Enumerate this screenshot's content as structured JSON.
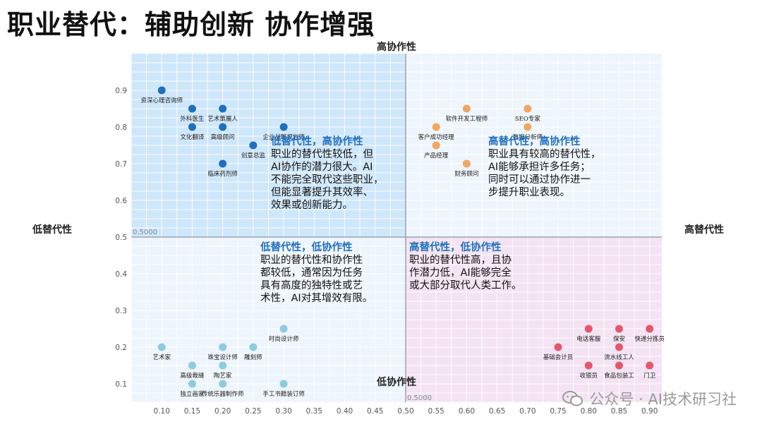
{
  "title": "职业替代：辅助创新 协作增强",
  "axis_labels": {
    "top": "高协作性",
    "bottom": "低协作性",
    "left": "低替代性",
    "right": "高替代性"
  },
  "quadrants": [
    {
      "id": "tl",
      "heading": "低替代性，高协作性",
      "lines": [
        "职业的替代性较低，但",
        "AI协作的潜力很大。AI",
        "不能完全取代这些职业，",
        "但能显著提升其效率、",
        "效果或创新能力。"
      ]
    },
    {
      "id": "tr",
      "heading": "高替代性，高协作性",
      "lines": [
        "职业具有较高的替代性，",
        "AI能够承担许多任务；",
        "同时可以通过协作进一",
        "步提升职业表现。"
      ]
    },
    {
      "id": "bl",
      "heading": "低替代性，低协作性",
      "lines": [
        "职业的替代性和协作性",
        "都较低，通常因为任务",
        "具有高度的独特性或艺",
        "术性，AI对其增效有限。"
      ]
    },
    {
      "id": "br",
      "heading": "高替代性，低协作性",
      "lines": [
        "职业的替代性高，且协",
        "作潜力低，AI能够完全",
        "或大部分取代人类工作。"
      ]
    }
  ],
  "watermark": "公众号 · AI技术研习社",
  "chart_data": {
    "type": "scatter",
    "x_ticks": [
      "0.10",
      "0.15",
      "0.20",
      "0.25",
      "0.30",
      "0.35",
      "0.40",
      "0.45",
      "0.50",
      "0.55",
      "0.60",
      "0.65",
      "0.70",
      "0.75",
      "0.80",
      "0.85",
      "0.90"
    ],
    "y_ticks": [
      "0.1",
      "0.2",
      "0.3",
      "0.4",
      "0.5",
      "0.6",
      "0.7",
      "0.8",
      "0.9"
    ],
    "xlim": [
      0.05,
      0.92
    ],
    "ylim": [
      0.05,
      1.0
    ],
    "divider": {
      "x": 0.5,
      "y": 0.5
    },
    "divider_labels": {
      "y_line": "0.5000",
      "x_line": "0.5000"
    },
    "quadrant_colors": {
      "tl": "#cfe7fb",
      "tr": "#eef5fc",
      "bl": "#eef5fc",
      "br": "#f4e3f2"
    },
    "series": [
      {
        "name": "低替代性高协作性",
        "color": "#1f6fbf",
        "points": [
          {
            "x": 0.1,
            "y": 0.9,
            "label": "资深心理咨询师"
          },
          {
            "x": 0.15,
            "y": 0.85,
            "label": "外科医生"
          },
          {
            "x": 0.2,
            "y": 0.85,
            "label": "艺术策展人"
          },
          {
            "x": 0.15,
            "y": 0.8,
            "label": "文化翻译"
          },
          {
            "x": 0.2,
            "y": 0.8,
            "label": "高级顾问"
          },
          {
            "x": 0.3,
            "y": 0.8,
            "label": "企业战略规划师"
          },
          {
            "x": 0.25,
            "y": 0.75,
            "label": "创意总监"
          },
          {
            "x": 0.2,
            "y": 0.7,
            "label": "临床药剂师"
          }
        ]
      },
      {
        "name": "高替代性高协作性",
        "color": "#f2a662",
        "points": [
          {
            "x": 0.6,
            "y": 0.85,
            "label": "软件开发工程师"
          },
          {
            "x": 0.7,
            "y": 0.85,
            "label": "SEO专家"
          },
          {
            "x": 0.55,
            "y": 0.8,
            "label": "客户成功经理"
          },
          {
            "x": 0.7,
            "y": 0.8,
            "label": "数据分析师"
          },
          {
            "x": 0.55,
            "y": 0.75,
            "label": "产品经理"
          },
          {
            "x": 0.6,
            "y": 0.7,
            "label": "财务顾问"
          }
        ]
      },
      {
        "name": "低替代性低协作性",
        "color": "#8ccbe0",
        "points": [
          {
            "x": 0.3,
            "y": 0.25,
            "label": "时尚设计师"
          },
          {
            "x": 0.1,
            "y": 0.2,
            "label": "艺术家"
          },
          {
            "x": 0.2,
            "y": 0.2,
            "label": "珠宝设计师"
          },
          {
            "x": 0.25,
            "y": 0.2,
            "label": "雕刻师"
          },
          {
            "x": 0.15,
            "y": 0.15,
            "label": "高级裁缝"
          },
          {
            "x": 0.2,
            "y": 0.15,
            "label": "陶艺家"
          },
          {
            "x": 0.15,
            "y": 0.1,
            "label": "独立画家"
          },
          {
            "x": 0.2,
            "y": 0.1,
            "label": "传统乐器制作师"
          },
          {
            "x": 0.3,
            "y": 0.1,
            "label": "手工书籍装订师"
          }
        ]
      },
      {
        "name": "高替代性低协作性",
        "color": "#e8566c",
        "points": [
          {
            "x": 0.8,
            "y": 0.25,
            "label": "电话客服"
          },
          {
            "x": 0.85,
            "y": 0.25,
            "label": "保安"
          },
          {
            "x": 0.9,
            "y": 0.25,
            "label": "快递分拣员"
          },
          {
            "x": 0.75,
            "y": 0.2,
            "label": "基础会计员"
          },
          {
            "x": 0.85,
            "y": 0.2,
            "label": "流水线工人"
          },
          {
            "x": 0.8,
            "y": 0.15,
            "label": "收银员"
          },
          {
            "x": 0.85,
            "y": 0.15,
            "label": "食品包装工"
          },
          {
            "x": 0.9,
            "y": 0.15,
            "label": "门卫"
          }
        ]
      }
    ]
  }
}
